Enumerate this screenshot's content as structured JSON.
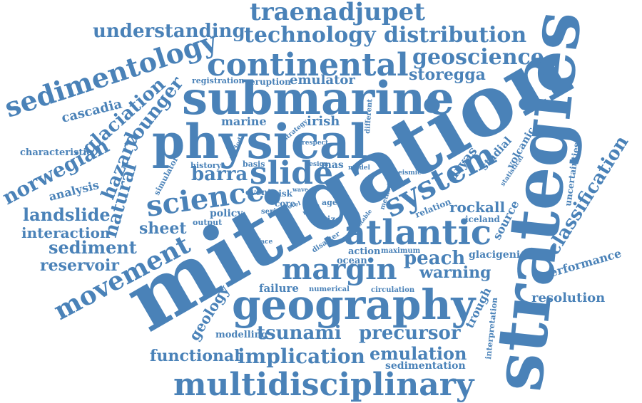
{
  "colors": {
    "word": "#4a82b8",
    "background": "#ffffff"
  },
  "words": [
    {
      "text": "mitigation"
    },
    {
      "text": "strategies"
    },
    {
      "text": "submarine"
    },
    {
      "text": "physical"
    },
    {
      "text": "geography"
    },
    {
      "text": "continental"
    },
    {
      "text": "multidisciplinary"
    },
    {
      "text": "atlantic"
    },
    {
      "text": "system"
    },
    {
      "text": "margin"
    },
    {
      "text": "slide"
    },
    {
      "text": "science"
    },
    {
      "text": "movement"
    },
    {
      "text": "sedimentology"
    },
    {
      "text": "traenadjupet"
    },
    {
      "text": "technology"
    },
    {
      "text": "distribution"
    },
    {
      "text": "understanding"
    },
    {
      "text": "geoscience"
    },
    {
      "text": "storegga"
    },
    {
      "text": "norwegian"
    },
    {
      "text": "glaciation"
    },
    {
      "text": "younger"
    },
    {
      "text": "hazard"
    },
    {
      "text": "natural"
    },
    {
      "text": "cascadia"
    },
    {
      "text": "landslide"
    },
    {
      "text": "sediment"
    },
    {
      "text": "reservoir"
    },
    {
      "text": "interaction"
    },
    {
      "text": "analysis"
    },
    {
      "text": "characteristic"
    },
    {
      "text": "tsunami"
    },
    {
      "text": "precursor"
    },
    {
      "text": "implication"
    },
    {
      "text": "functional"
    },
    {
      "text": "emulation"
    },
    {
      "text": "sedimentation"
    },
    {
      "text": "classification"
    },
    {
      "text": "performance"
    },
    {
      "text": "resolution"
    },
    {
      "text": "peach"
    },
    {
      "text": "warning"
    },
    {
      "text": "rockall"
    },
    {
      "text": "sheet"
    },
    {
      "text": "barra"
    },
    {
      "text": "policy"
    },
    {
      "text": "dryas"
    },
    {
      "text": "emulator"
    },
    {
      "text": "marine"
    },
    {
      "text": "irish"
    },
    {
      "text": "geology"
    },
    {
      "text": "trough"
    },
    {
      "text": "modelling"
    },
    {
      "text": "failure"
    },
    {
      "text": "action"
    },
    {
      "text": "ocean"
    },
    {
      "text": "glacigenic"
    },
    {
      "text": "source"
    },
    {
      "text": "stadial"
    },
    {
      "text": "volcanic"
    },
    {
      "text": "uncertainties"
    },
    {
      "text": "interpretation"
    },
    {
      "text": "iceland"
    },
    {
      "text": "relation"
    },
    {
      "text": "eruption"
    },
    {
      "text": "registration"
    },
    {
      "text": "mas"
    },
    {
      "text": "event"
    },
    {
      "text": "risk"
    },
    {
      "text": "core"
    },
    {
      "text": "history"
    },
    {
      "text": "basis"
    },
    {
      "text": "simulator"
    },
    {
      "text": "output"
    },
    {
      "text": "series"
    },
    {
      "text": "size"
    },
    {
      "text": "surface"
    },
    {
      "text": "disaster"
    },
    {
      "text": "maximum"
    },
    {
      "text": "numerical"
    },
    {
      "text": "circulation"
    },
    {
      "text": "different"
    },
    {
      "text": "method"
    },
    {
      "text": "statistical"
    },
    {
      "text": "seismic"
    },
    {
      "text": "strategy"
    },
    {
      "text": "respect"
    },
    {
      "text": "period"
    },
    {
      "text": "design"
    },
    {
      "text": "model"
    },
    {
      "text": "wave"
    },
    {
      "text": "age"
    },
    {
      "text": "more"
    },
    {
      "text": "novel"
    },
    {
      "text": "stable"
    }
  ]
}
